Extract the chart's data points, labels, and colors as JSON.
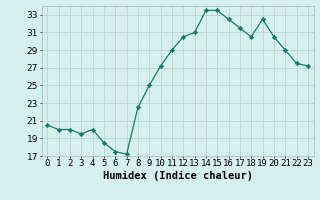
{
  "x": [
    0,
    1,
    2,
    3,
    4,
    5,
    6,
    7,
    8,
    9,
    10,
    11,
    12,
    13,
    14,
    15,
    16,
    17,
    18,
    19,
    20,
    21,
    22,
    23
  ],
  "y": [
    20.5,
    20.0,
    20.0,
    19.5,
    20.0,
    18.5,
    17.5,
    17.2,
    22.5,
    25.0,
    27.2,
    29.0,
    30.5,
    31.0,
    33.5,
    33.5,
    32.5,
    31.5,
    30.5,
    32.5,
    30.5,
    29.0,
    27.5,
    27.2
  ],
  "xlabel": "Humidex (Indice chaleur)",
  "line_color": "#1a7a6a",
  "marker": "D",
  "marker_size": 2.2,
  "bg_color": "#d6f0ee",
  "grid_color": "#c0d8d4",
  "ylim": [
    17,
    34
  ],
  "xlim": [
    -0.5,
    23.5
  ],
  "yticks": [
    17,
    19,
    21,
    23,
    25,
    27,
    29,
    31,
    33
  ],
  "xtick_labels": [
    "0",
    "1",
    "2",
    "3",
    "4",
    "5",
    "6",
    "7",
    "8",
    "9",
    "10",
    "11",
    "12",
    "13",
    "14",
    "15",
    "16",
    "17",
    "18",
    "19",
    "20",
    "21",
    "22",
    "23"
  ],
  "xlabel_fontsize": 7.5,
  "tick_fontsize": 6.5
}
